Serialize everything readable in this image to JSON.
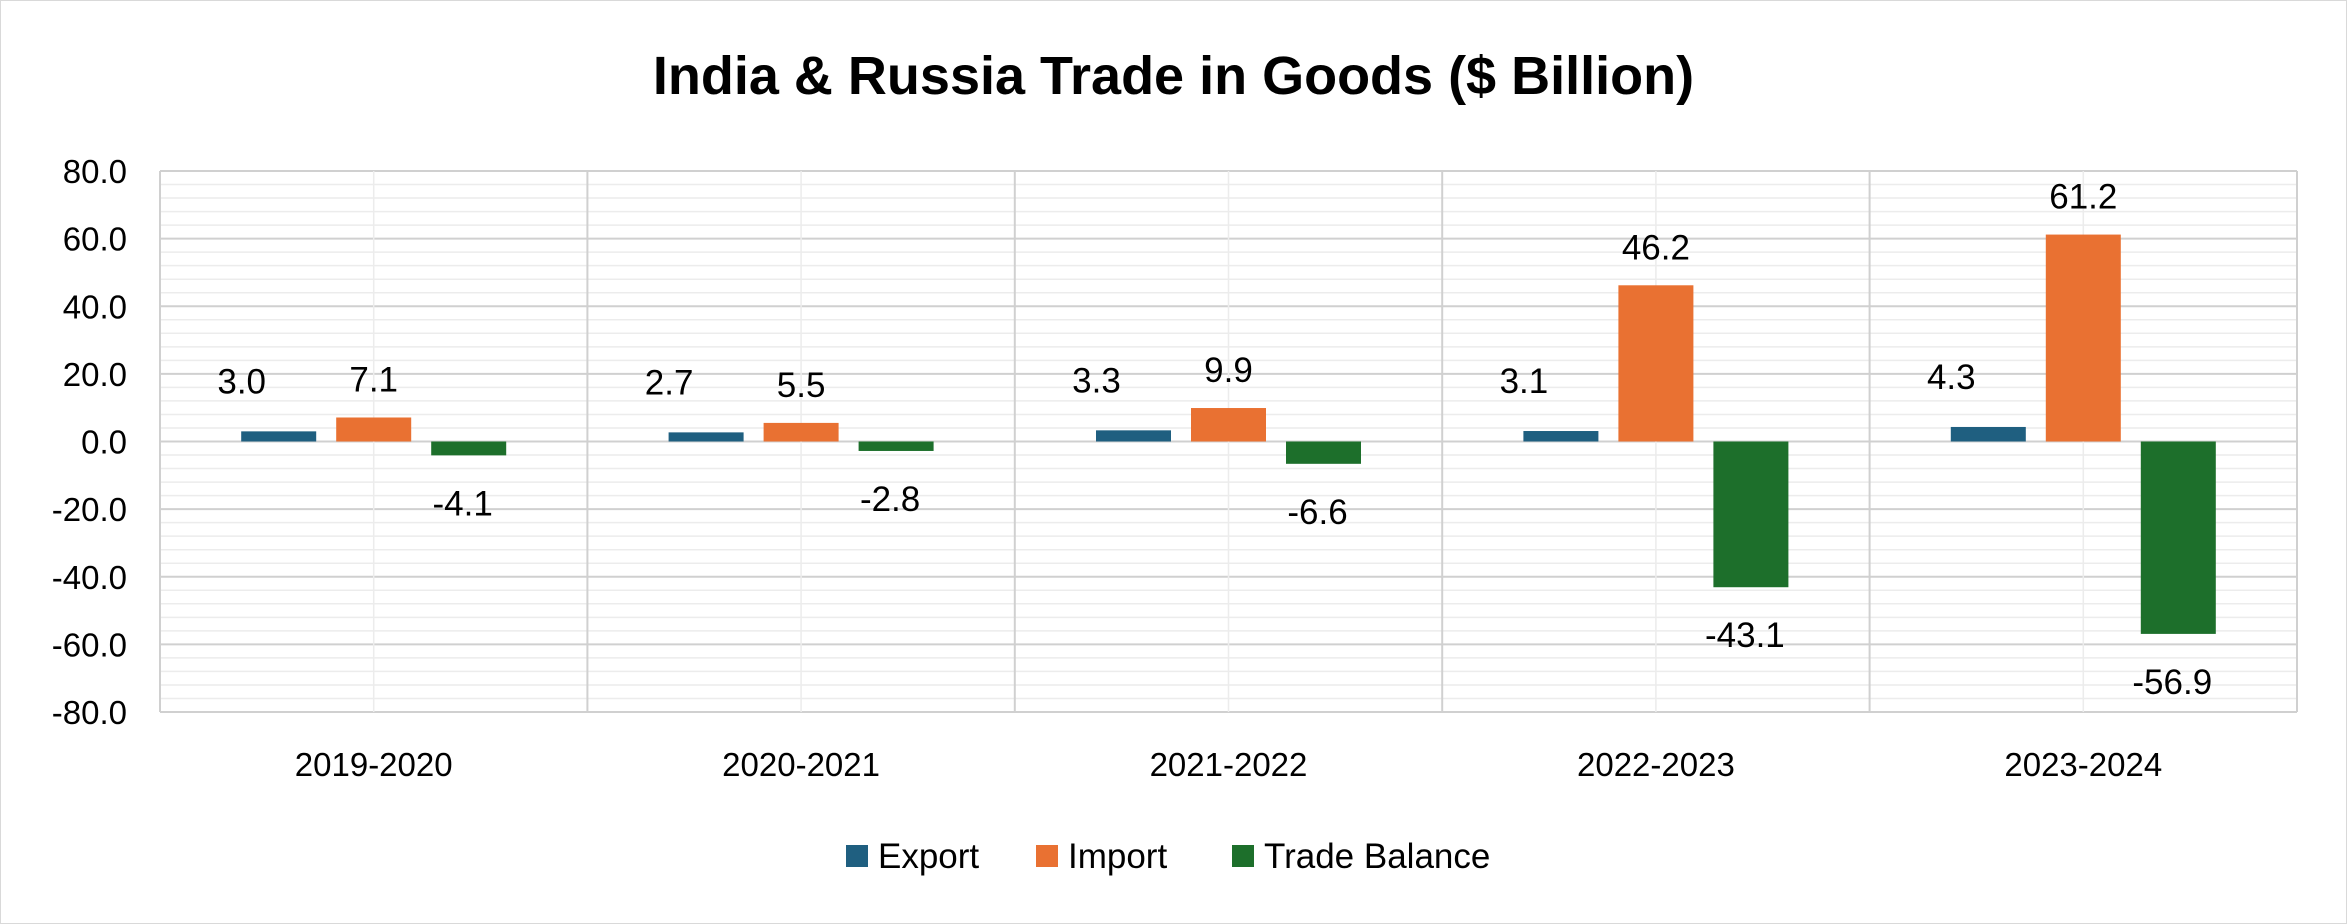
{
  "chart_data": {
    "type": "bar",
    "title": "India & Russia Trade in Goods ($ Billion)",
    "xlabel": "",
    "ylabel": "",
    "categories": [
      "2019-2020",
      "2020-2021",
      "2021-2022",
      "2022-2023",
      "2023-2024"
    ],
    "series": [
      {
        "name": "Export",
        "values": [
          3.0,
          2.7,
          3.3,
          3.1,
          4.3
        ],
        "color": "#1f5f80"
      },
      {
        "name": "Import",
        "values": [
          7.1,
          5.5,
          9.9,
          46.2,
          61.2
        ],
        "color": "#e97132"
      },
      {
        "name": "Trade Balance",
        "values": [
          -4.1,
          -2.8,
          -6.6,
          -43.1,
          -56.9
        ],
        "color": "#1d6f2b"
      }
    ],
    "data_labels": [
      [
        "3.0",
        "2.7",
        "3.3",
        "3.1",
        "4.3"
      ],
      [
        "7.1",
        "5.5",
        "9.9",
        "46.2",
        "61.2"
      ],
      [
        "-4.1",
        "-2.8",
        "-6.6",
        "-43.1",
        "-56.9"
      ]
    ],
    "ylim": [
      -80,
      80
    ],
    "y_ticks": [
      "80.0",
      "60.0",
      "40.0",
      "20.0",
      "0.0",
      "-20.0",
      "-40.0",
      "-60.0",
      "-80.0"
    ],
    "grid": true,
    "legend_position": "bottom"
  }
}
